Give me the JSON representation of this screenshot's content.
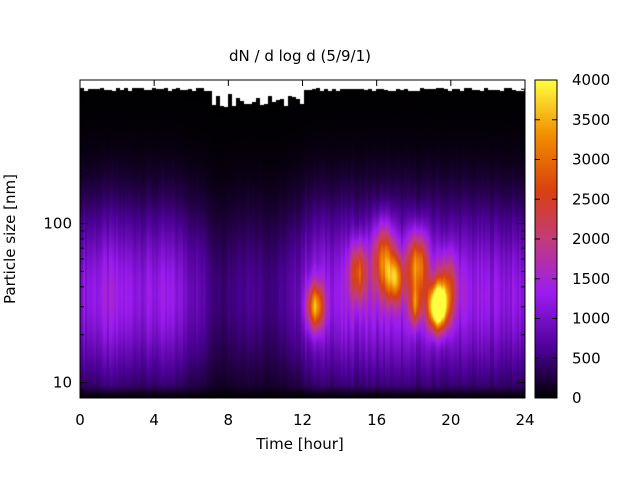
{
  "chart_data": {
    "type": "heatmap",
    "title": "dN / d log d (5/9/1)",
    "xlabel": "Time [hour]",
    "ylabel": "Particle size [nm]",
    "xlim": [
      0,
      24
    ],
    "ylim": [
      8,
      800
    ],
    "y_scale": "log",
    "x_ticks": [
      0,
      4,
      8,
      12,
      16,
      20,
      24
    ],
    "x_tick_labels": [
      "0",
      "4",
      "8",
      "12",
      "16",
      "20",
      "24"
    ],
    "y_ticks": [
      10,
      100
    ],
    "y_tick_labels": [
      "10",
      "100"
    ],
    "colorbar": {
      "range": [
        0,
        4000
      ],
      "ticks": [
        0,
        500,
        1000,
        1500,
        2000,
        2500,
        3000,
        3500,
        4000
      ],
      "tick_labels": [
        "0",
        "500",
        "1000",
        "1500",
        "2000",
        "2500",
        "3000",
        "3500",
        "4000"
      ],
      "colormap": [
        "#000000",
        "#4a0093",
        "#9c1cf0",
        "#c23c7a",
        "#d84010",
        "#f08a00",
        "#ffff40"
      ]
    },
    "background_level": [
      {
        "t": 0,
        "level": 0.9
      },
      {
        "t": 1.5,
        "level": 1.05
      },
      {
        "t": 3,
        "level": 0.95
      },
      {
        "t": 5,
        "level": 0.95
      },
      {
        "t": 6.5,
        "level": 0.6
      },
      {
        "t": 7.5,
        "level": 0.35
      },
      {
        "t": 9,
        "level": 0.5
      },
      {
        "t": 10.5,
        "level": 0.4
      },
      {
        "t": 11.5,
        "level": 0.55
      },
      {
        "t": 12.5,
        "level": 0.95
      },
      {
        "t": 14,
        "level": 1.0
      },
      {
        "t": 16,
        "level": 1.05
      },
      {
        "t": 20,
        "level": 1.0
      },
      {
        "t": 24,
        "level": 0.9
      }
    ],
    "hotspots": [
      {
        "t_center": 12.7,
        "t_width": 0.45,
        "d_center_nm": 30,
        "log_width": 0.14,
        "value": 2300
      },
      {
        "t_center": 15.0,
        "t_width": 0.45,
        "d_center_nm": 50,
        "log_width": 0.18,
        "value": 1700
      },
      {
        "t_center": 16.4,
        "t_width": 0.6,
        "d_center_nm": 60,
        "log_width": 0.22,
        "value": 2000
      },
      {
        "t_center": 17.0,
        "t_width": 0.45,
        "d_center_nm": 45,
        "log_width": 0.14,
        "value": 1800
      },
      {
        "t_center": 18.2,
        "t_width": 0.55,
        "d_center_nm": 55,
        "log_width": 0.2,
        "value": 2200
      },
      {
        "t_center": 18.1,
        "t_width": 0.3,
        "d_center_nm": 30,
        "log_width": 0.12,
        "value": 1500
      },
      {
        "t_center": 19.3,
        "t_width": 0.5,
        "d_center_nm": 30,
        "log_width": 0.14,
        "value": 3900
      },
      {
        "t_center": 19.8,
        "t_width": 0.55,
        "d_center_nm": 40,
        "log_width": 0.2,
        "value": 1300
      }
    ],
    "grid": false,
    "legend": "colorbar-right"
  }
}
